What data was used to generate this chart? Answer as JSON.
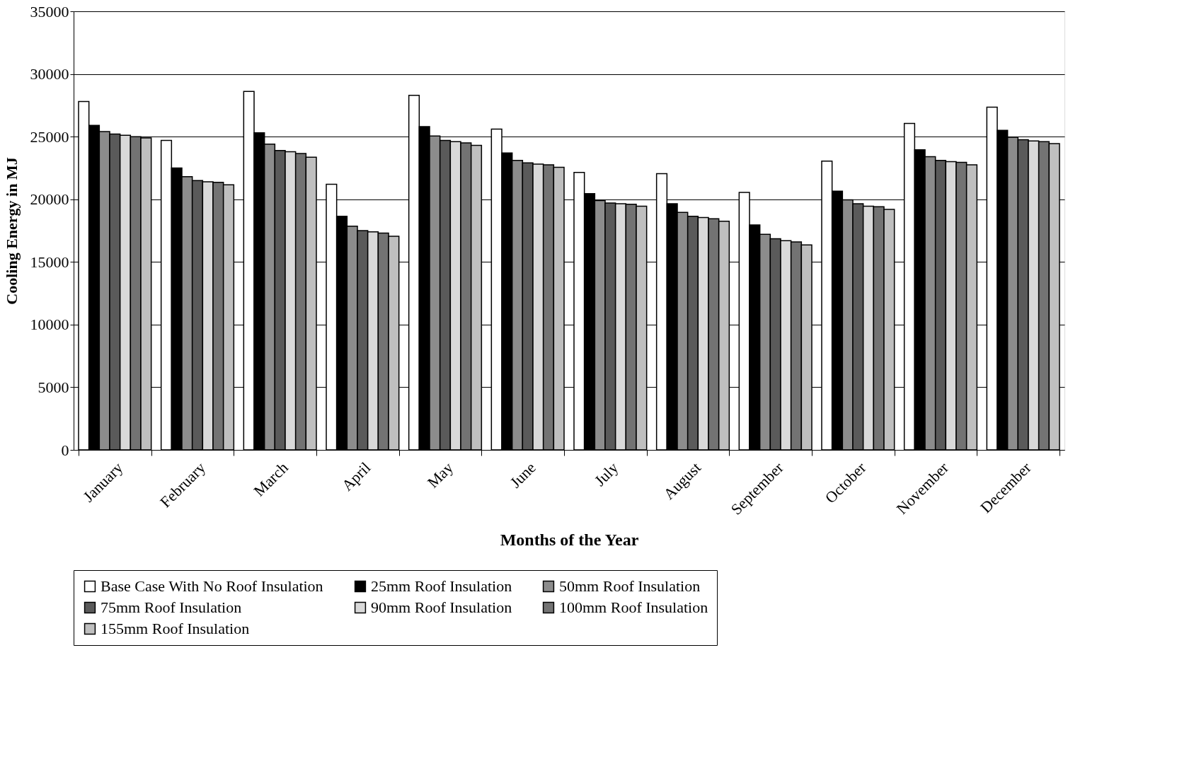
{
  "chart_data": {
    "type": "bar",
    "xlabel": "Months of the Year",
    "ylabel": "Cooling Energy in MJ",
    "categories": [
      "January",
      "February",
      "March",
      "April",
      "May",
      "June",
      "July",
      "August",
      "September",
      "October",
      "November",
      "December"
    ],
    "series": [
      {
        "name": "Base Case With No Roof Insulation",
        "color": "#ffffff",
        "values": [
          27800,
          24700,
          28600,
          21200,
          28300,
          25600,
          22150,
          22050,
          20550,
          23050,
          26050,
          27350
        ]
      },
      {
        "name": "25mm Roof Insulation",
        "color": "#000000",
        "values": [
          25900,
          22500,
          25300,
          18650,
          25800,
          23700,
          20450,
          19650,
          17950,
          20650,
          23950,
          25500
        ]
      },
      {
        "name": "50mm Roof Insulation",
        "color": "#8c8c8c",
        "values": [
          25400,
          21800,
          24400,
          17850,
          25050,
          23100,
          19900,
          18950,
          17200,
          19950,
          23400,
          24950
        ]
      },
      {
        "name": "75mm Roof Insulation",
        "color": "#5a5a5a",
        "values": [
          25200,
          21500,
          23900,
          17500,
          24700,
          22900,
          19700,
          18650,
          16850,
          19650,
          23100,
          24750
        ]
      },
      {
        "name": "90mm Roof Insulation",
        "color": "#d9d9d9",
        "values": [
          25100,
          21400,
          23800,
          17400,
          24600,
          22800,
          19650,
          18550,
          16700,
          19450,
          23000,
          24650
        ]
      },
      {
        "name": "100mm Roof Insulation",
        "color": "#737373",
        "values": [
          25000,
          21350,
          23650,
          17300,
          24500,
          22750,
          19600,
          18450,
          16600,
          19400,
          22950,
          24600
        ]
      },
      {
        "name": "155mm Roof Insulation",
        "color": "#bfbfbf",
        "values": [
          24900,
          21150,
          23350,
          17050,
          24300,
          22550,
          19450,
          18250,
          16350,
          19200,
          22750,
          24450
        ]
      }
    ],
    "ylim": [
      0,
      35000
    ],
    "yticks": [
      0,
      5000,
      10000,
      15000,
      20000,
      25000,
      30000,
      35000
    ],
    "grid": "y",
    "legend": "bottom"
  }
}
